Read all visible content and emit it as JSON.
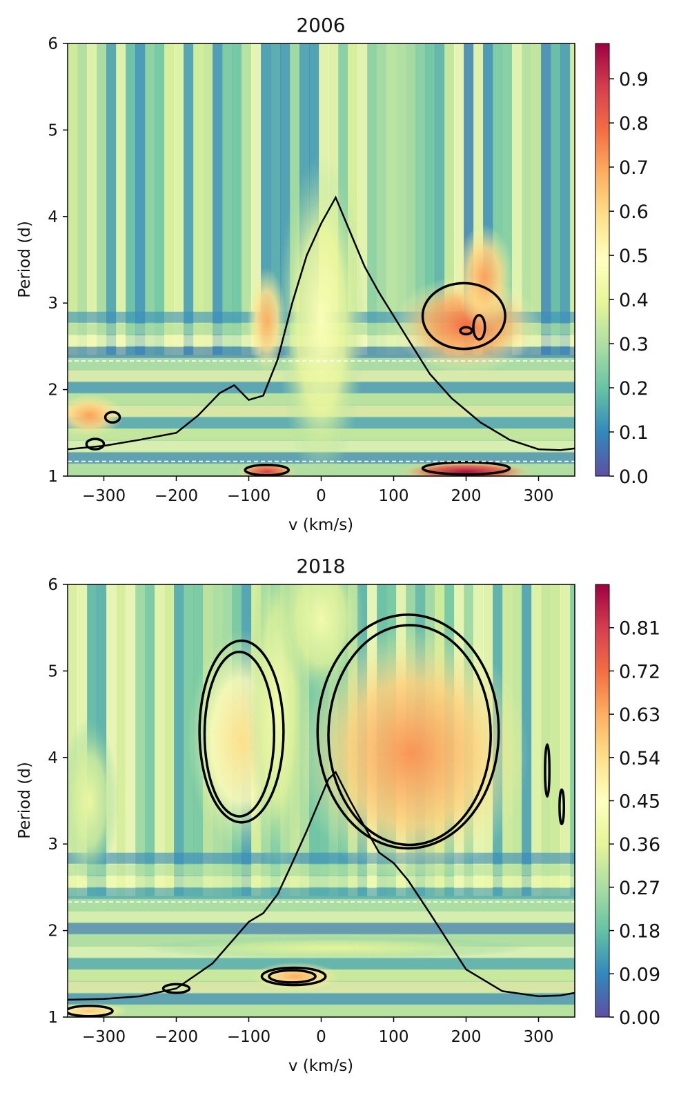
{
  "chart_data": [
    {
      "type": "heatmap",
      "title": "2006",
      "xlabel": "v (km/s)",
      "ylabel": "Period (d)",
      "xlim": [
        -350,
        350
      ],
      "ylim": [
        1,
        6
      ],
      "x_ticks": [
        -300,
        -200,
        -100,
        0,
        100,
        200,
        300
      ],
      "x_tick_labels": [
        "−300",
        "−200",
        "−100",
        "0",
        "100",
        "200",
        "300"
      ],
      "y_ticks": [
        1,
        2,
        3,
        4,
        5,
        6
      ],
      "y_tick_labels": [
        "1",
        "2",
        "3",
        "4",
        "5",
        "6"
      ],
      "colormap": "Spectral_r",
      "colorbar": {
        "range": [
          0,
          0.98
        ],
        "ticks": [
          0.0,
          0.1,
          0.2,
          0.3,
          0.4,
          0.5,
          0.6,
          0.7,
          0.8,
          0.9
        ],
        "tick_labels": [
          "0.0",
          "0.1",
          "0.2",
          "0.3",
          "0.4",
          "0.5",
          "0.6",
          "0.7",
          "0.8",
          "0.9"
        ]
      },
      "reference_lines": [
        2.33,
        1.17
      ],
      "line_profile": {
        "x": [
          -350,
          -300,
          -250,
          -200,
          -170,
          -140,
          -120,
          -100,
          -80,
          -60,
          -40,
          -20,
          0,
          20,
          40,
          60,
          80,
          100,
          120,
          150,
          180,
          220,
          260,
          300,
          330,
          350
        ],
        "y": [
          1.31,
          1.35,
          1.42,
          1.5,
          1.7,
          1.96,
          2.05,
          1.88,
          1.93,
          2.35,
          3.0,
          3.55,
          3.92,
          4.22,
          3.82,
          3.42,
          3.12,
          2.85,
          2.58,
          2.18,
          1.9,
          1.62,
          1.42,
          1.31,
          1.3,
          1.32
        ]
      },
      "hot_regions": [
        {
          "v": 200,
          "p": 2.75,
          "dv": 75,
          "dp": 0.42,
          "level": 0.8
        },
        {
          "v": 225,
          "p": 3.3,
          "dv": 30,
          "dp": 0.45,
          "level": 0.72
        },
        {
          "v": -75,
          "p": 2.8,
          "dv": 20,
          "dp": 0.45,
          "level": 0.7
        },
        {
          "v": -320,
          "p": 1.7,
          "dv": 35,
          "dp": 0.18,
          "level": 0.72
        },
        {
          "v": 200,
          "p": 1.05,
          "dv": 70,
          "dp": 0.09,
          "level": 0.98
        },
        {
          "v": -75,
          "p": 1.05,
          "dv": 30,
          "dp": 0.08,
          "level": 0.9
        },
        {
          "v": 0,
          "p": 2.8,
          "dv": 45,
          "dp": 1.4,
          "level": 0.48
        }
      ],
      "contours": [
        {
          "v": 197,
          "p": 2.85,
          "dv": 57,
          "dp": 0.38
        },
        {
          "v": 218,
          "p": 2.72,
          "dv": 8,
          "dp": 0.14
        },
        {
          "v": 200,
          "p": 2.68,
          "dv": 8,
          "dp": 0.04
        },
        {
          "v": -288,
          "p": 1.68,
          "dv": 10,
          "dp": 0.06
        },
        {
          "v": -312,
          "p": 1.37,
          "dv": 12,
          "dp": 0.06
        },
        {
          "v": -75,
          "p": 1.07,
          "dv": 30,
          "dp": 0.06
        },
        {
          "v": 200,
          "p": 1.09,
          "dv": 60,
          "dp": 0.07
        }
      ]
    },
    {
      "type": "heatmap",
      "title": "2018",
      "xlabel": "v (km/s)",
      "ylabel": "Period (d)",
      "xlim": [
        -350,
        350
      ],
      "ylim": [
        1,
        6
      ],
      "x_ticks": [
        -300,
        -200,
        -100,
        0,
        100,
        200,
        300
      ],
      "x_tick_labels": [
        "−300",
        "−200",
        "−100",
        "0",
        "100",
        "200",
        "300"
      ],
      "y_ticks": [
        1,
        2,
        3,
        4,
        5,
        6
      ],
      "y_tick_labels": [
        "1",
        "2",
        "3",
        "4",
        "5",
        "6"
      ],
      "colormap": "Spectral_r",
      "colorbar": {
        "range": [
          0,
          0.9
        ],
        "ticks": [
          0.0,
          0.09,
          0.18,
          0.27,
          0.36,
          0.45,
          0.54,
          0.63,
          0.72,
          0.81
        ],
        "tick_labels": [
          "0.00",
          "0.09",
          "0.18",
          "0.27",
          "0.36",
          "0.45",
          "0.54",
          "0.63",
          "0.72",
          "0.81"
        ]
      },
      "reference_lines": [
        2.33
      ],
      "line_profile": {
        "x": [
          -350,
          -300,
          -250,
          -200,
          -150,
          -100,
          -80,
          -60,
          -40,
          -20,
          0,
          10,
          20,
          40,
          60,
          80,
          100,
          120,
          150,
          200,
          250,
          300,
          330,
          350
        ],
        "y": [
          1.2,
          1.21,
          1.24,
          1.33,
          1.62,
          2.1,
          2.2,
          2.42,
          2.78,
          3.15,
          3.55,
          3.75,
          3.83,
          3.5,
          3.2,
          2.9,
          2.78,
          2.58,
          2.2,
          1.55,
          1.3,
          1.24,
          1.25,
          1.28
        ]
      },
      "hot_regions": [
        {
          "v": 125,
          "p": 4.05,
          "dv": 120,
          "dp": 1.1,
          "level": 0.74
        },
        {
          "v": -110,
          "p": 4.2,
          "dv": 55,
          "dp": 0.95,
          "level": 0.6
        },
        {
          "v": -35,
          "p": 1.47,
          "dv": 45,
          "dp": 0.12,
          "level": 0.7
        },
        {
          "v": -320,
          "p": 1.07,
          "dv": 40,
          "dp": 0.07,
          "level": 0.65
        },
        {
          "v": -60,
          "p": 4.6,
          "dv": 30,
          "dp": 1.5,
          "level": 0.45
        },
        {
          "v": 0,
          "p": 5.6,
          "dv": 45,
          "dp": 0.7,
          "level": 0.45
        },
        {
          "v": 20,
          "p": 1.8,
          "dv": 200,
          "dp": 0.1,
          "level": 0.4
        },
        {
          "v": -320,
          "p": 3.5,
          "dv": 30,
          "dp": 0.7,
          "level": 0.42
        }
      ],
      "contours": [
        {
          "v": -110,
          "p": 4.3,
          "dv": 58,
          "dp": 1.05
        },
        {
          "v": -113,
          "p": 4.27,
          "dv": 48,
          "dp": 0.95
        },
        {
          "v": 120,
          "p": 4.3,
          "dv": 125,
          "dp": 1.35
        },
        {
          "v": 122,
          "p": 4.26,
          "dv": 112,
          "dp": 1.27
        },
        {
          "v": -38,
          "p": 1.47,
          "dv": 44,
          "dp": 0.1
        },
        {
          "v": -40,
          "p": 1.47,
          "dv": 32,
          "dp": 0.07
        },
        {
          "v": -200,
          "p": 1.33,
          "dv": 18,
          "dp": 0.05
        },
        {
          "v": 312,
          "p": 3.85,
          "dv": 3,
          "dp": 0.3
        },
        {
          "v": 332,
          "p": 3.43,
          "dv": 3,
          "dp": 0.2
        },
        {
          "v": -320,
          "p": 1.07,
          "dv": 32,
          "dp": 0.06
        }
      ]
    }
  ]
}
